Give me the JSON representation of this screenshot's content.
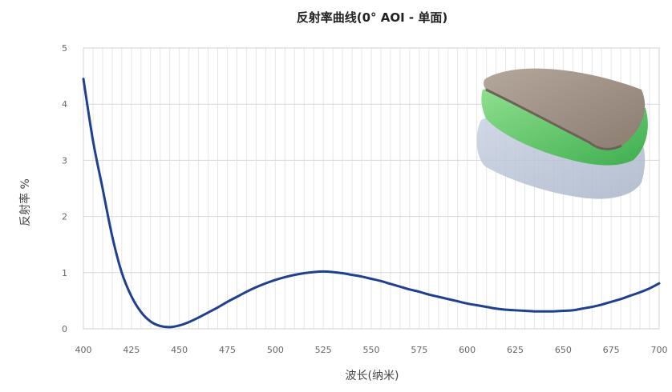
{
  "chart_data": {
    "type": "line",
    "title": "反射率曲线(0° AOI - 单面)",
    "xlabel": "波长(纳米)",
    "ylabel": "反射率 %",
    "xlim": [
      400,
      700
    ],
    "ylim": [
      0,
      5
    ],
    "xticks": [
      400,
      425,
      450,
      475,
      500,
      525,
      550,
      575,
      600,
      625,
      650,
      675,
      700
    ],
    "yticks": [
      0,
      1,
      2,
      3,
      4,
      5
    ],
    "grid": true,
    "legend": "none",
    "colors": {
      "line": "#1f3f8f",
      "grid_major": "#d8d8d8",
      "grid_minor": "#e6e6e6"
    },
    "series": [
      {
        "x": [
          400,
          405,
          410,
          415,
          420,
          425,
          430,
          435,
          440,
          445,
          450,
          455,
          460,
          465,
          470,
          475,
          480,
          485,
          490,
          495,
          500,
          505,
          510,
          515,
          520,
          525,
          530,
          535,
          540,
          545,
          550,
          555,
          560,
          565,
          570,
          575,
          580,
          585,
          590,
          595,
          600,
          605,
          610,
          615,
          620,
          625,
          630,
          635,
          640,
          645,
          650,
          655,
          660,
          665,
          670,
          675,
          680,
          685,
          690,
          695,
          700
        ],
        "y": [
          4.45,
          3.35,
          2.5,
          1.65,
          1.0,
          0.58,
          0.3,
          0.13,
          0.05,
          0.03,
          0.06,
          0.12,
          0.2,
          0.29,
          0.38,
          0.48,
          0.57,
          0.66,
          0.74,
          0.81,
          0.87,
          0.92,
          0.96,
          0.99,
          1.01,
          1.02,
          1.01,
          0.99,
          0.96,
          0.93,
          0.89,
          0.85,
          0.8,
          0.75,
          0.7,
          0.66,
          0.61,
          0.57,
          0.53,
          0.49,
          0.45,
          0.42,
          0.39,
          0.36,
          0.34,
          0.33,
          0.32,
          0.31,
          0.31,
          0.31,
          0.32,
          0.33,
          0.36,
          0.39,
          0.43,
          0.48,
          0.53,
          0.59,
          0.65,
          0.72,
          0.81
        ]
      }
    ]
  },
  "illustration": {
    "name": "coated-lens-layers"
  }
}
